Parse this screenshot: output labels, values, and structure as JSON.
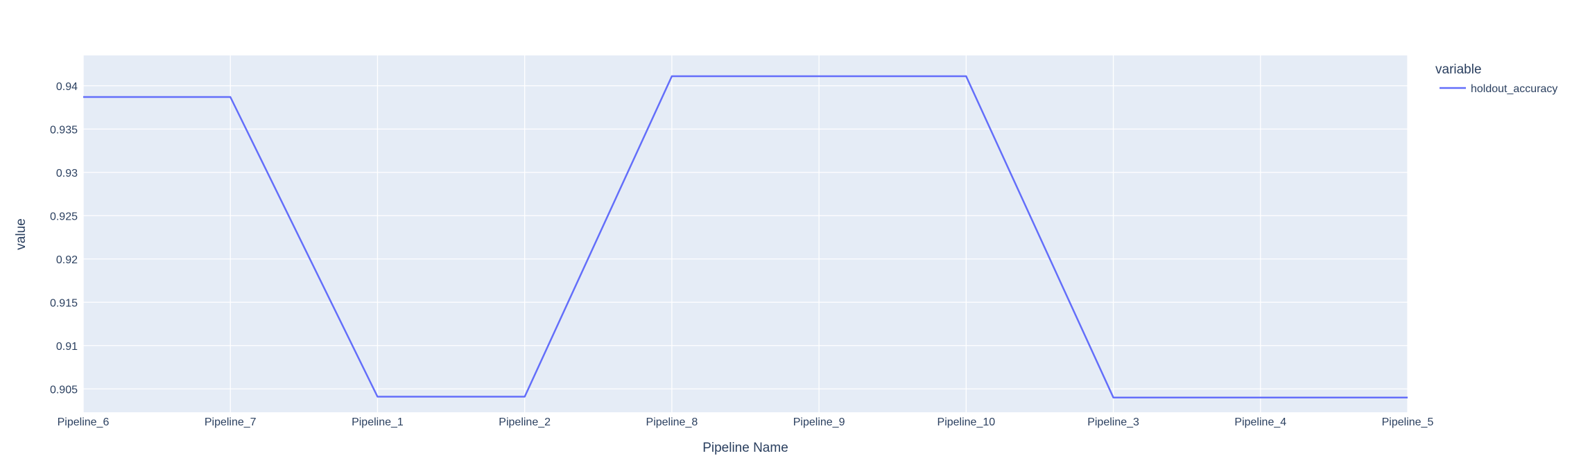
{
  "chart_data": {
    "type": "line",
    "xlabel": "Pipeline Name",
    "ylabel": "value",
    "categories": [
      "Pipeline_6",
      "Pipeline_7",
      "Pipeline_1",
      "Pipeline_2",
      "Pipeline_8",
      "Pipeline_9",
      "Pipeline_10",
      "Pipeline_3",
      "Pipeline_4",
      "Pipeline_5"
    ],
    "series": [
      {
        "name": "holdout_accuracy",
        "values": [
          0.9387,
          0.9387,
          0.9041,
          0.9041,
          0.9411,
          0.9411,
          0.9411,
          0.904,
          0.904,
          0.904
        ]
      }
    ],
    "ylim": [
      0.9023,
      0.9435
    ],
    "yticks": [
      0.905,
      0.91,
      0.915,
      0.92,
      0.925,
      0.93,
      0.935,
      0.94
    ],
    "ytick_labels": [
      "0.905",
      "0.91",
      "0.915",
      "0.92",
      "0.925",
      "0.93",
      "0.935",
      "0.94"
    ],
    "legend": {
      "title": "variable",
      "placement": "right"
    },
    "grid": true,
    "colors": {
      "plot_bg": "#e5ecf6",
      "grid": "#ffffff",
      "line": "#636efa",
      "text": "#2a3f5f"
    }
  }
}
